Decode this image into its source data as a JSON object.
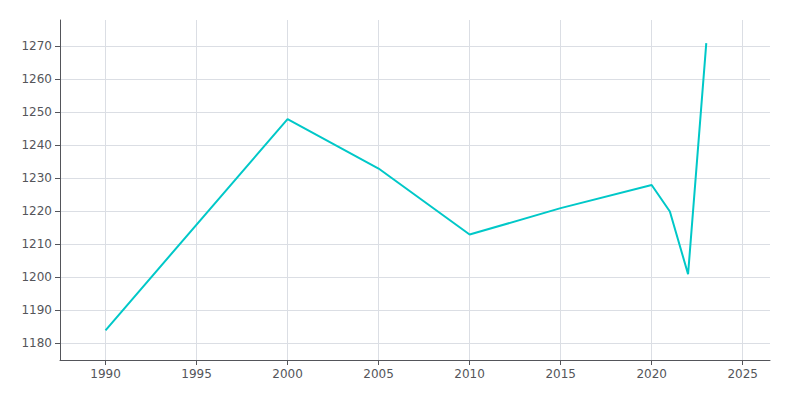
{
  "chart_data": {
    "type": "line",
    "x": [
      1990,
      2000,
      2005,
      2010,
      2015,
      2020,
      2021,
      2022,
      2023
    ],
    "values": [
      1184,
      1248,
      1233,
      1213,
      1221,
      1228,
      1220,
      1201,
      1271
    ],
    "color": "#00C8C8",
    "xlim": [
      1987.5,
      2026.5
    ],
    "ylim": [
      1175,
      1278
    ],
    "xticks": [
      1990,
      1995,
      2000,
      2005,
      2010,
      2015,
      2020,
      2025
    ],
    "yticks": [
      1180,
      1190,
      1200,
      1210,
      1220,
      1230,
      1240,
      1250,
      1260,
      1270
    ],
    "grid": true
  }
}
